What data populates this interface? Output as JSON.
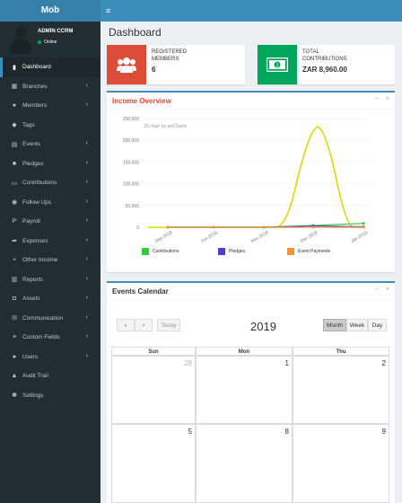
{
  "app": {
    "logo": "Mob"
  },
  "user": {
    "name": "ADMIN CCRM",
    "status": "Online"
  },
  "menu": [
    {
      "label": "Dashboard",
      "icon": "dashboard-icon",
      "active": true,
      "chevron": false
    },
    {
      "label": "Branches",
      "icon": "bank-icon",
      "chevron": true
    },
    {
      "label": "Members",
      "icon": "users-icon",
      "chevron": true
    },
    {
      "label": "Tags",
      "icon": "tags-icon",
      "chevron": false
    },
    {
      "label": "Events",
      "icon": "calendar-icon",
      "chevron": true
    },
    {
      "label": "Pledges",
      "icon": "gift-icon",
      "chevron": true
    },
    {
      "label": "Contributions",
      "icon": "money-icon",
      "chevron": true
    },
    {
      "label": "Follow Ups",
      "icon": "chat-icon",
      "chevron": true
    },
    {
      "label": "Payroll",
      "icon": "paypal-icon",
      "chevron": true
    },
    {
      "label": "Expenses",
      "icon": "share-icon",
      "chevron": true
    },
    {
      "label": "Other Income",
      "icon": "plus-icon",
      "chevron": true
    },
    {
      "label": "Reports",
      "icon": "bar-chart-icon",
      "chevron": true
    },
    {
      "label": "Assets",
      "icon": "car-icon",
      "chevron": true
    },
    {
      "label": "Communication",
      "icon": "envelope-icon",
      "chevron": true
    },
    {
      "label": "Custom Fields",
      "icon": "list-icon",
      "chevron": true
    },
    {
      "label": "Users",
      "icon": "user-icon",
      "chevron": true
    },
    {
      "label": "Audit Trail",
      "icon": "area-chart-icon",
      "chevron": false
    },
    {
      "label": "Settings",
      "icon": "gear-icon",
      "chevron": false
    }
  ],
  "page": {
    "title": "Dashboard"
  },
  "stats": [
    {
      "label_line1": "REGISTERED",
      "label_line2": "MEMBERS",
      "value": "6",
      "color": "#dd4b39",
      "icon": "users-icon"
    },
    {
      "label_line1": "TOTAL",
      "label_line2": "CONTRIBUTIONS",
      "value": "ZAR 8,960.00",
      "color": "#00a65a",
      "icon": "money-icon"
    }
  ],
  "income": {
    "title": "Income Overview",
    "title_color": "#dd4b39",
    "credit": "JS chart by amCharts",
    "tool_minimize": "−",
    "tool_close": "×"
  },
  "chart_data": {
    "type": "line",
    "title": "Income Overview",
    "x": [
      "Sep 2018",
      "Oct 2018",
      "Nov 2018",
      "Dec 2018",
      "Jan 2019"
    ],
    "y_ticks": [
      "250,000",
      "200,000",
      "150,000",
      "100,000",
      "50,000",
      "0"
    ],
    "ylim": [
      0,
      250000
    ],
    "series": [
      {
        "name": "Contributions",
        "color": "#2ccd3c",
        "values": [
          0,
          0,
          0,
          4000,
          8960
        ]
      },
      {
        "name": "Pledges",
        "color": "#4b3fd0",
        "values": [
          0,
          0,
          0,
          3000,
          1000
        ]
      },
      {
        "name": "Event Payments",
        "color": "#f0953c",
        "values": [
          0,
          0,
          0,
          0,
          0
        ]
      }
    ],
    "peak_line": {
      "color": "#d8d800",
      "note": "yellow curve peaking near 235,000 in Dec 2018"
    },
    "legend_placement": "bottom"
  },
  "calendar": {
    "title": "Events Calendar",
    "year": "2019",
    "prev": "‹",
    "next": "›",
    "today": "Today",
    "views": [
      "Month",
      "Week",
      "Day"
    ],
    "days": [
      "Sun",
      "Mon",
      "Thu"
    ],
    "row1": [
      "28",
      "1",
      "2"
    ],
    "row2": [
      "5",
      "8",
      "9"
    ],
    "tool_minimize": "−",
    "tool_close": "×"
  }
}
